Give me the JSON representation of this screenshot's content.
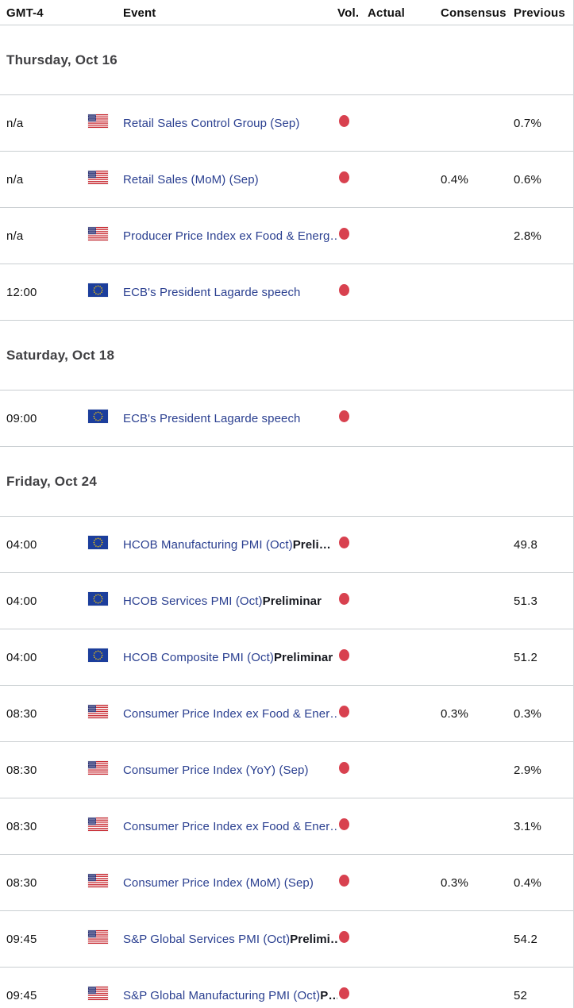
{
  "table": {
    "columns": {
      "time": "GMT-4",
      "event": "Event",
      "vol": "Vol.",
      "actual": "Actual",
      "consensus": "Consensus",
      "previous": "Previous"
    }
  },
  "colors": {
    "event_link_blue": "#2a3f90",
    "volatility_red": "#d8414f",
    "divider_gray": "#c9ced1",
    "day_header_gray": "#404043"
  },
  "sections": [
    {
      "day_label": "Thursday, Oct 16",
      "rows": [
        {
          "time": "n/a",
          "country": "us",
          "event": "Retail Sales Control Group (Sep)",
          "event_bold": "",
          "actual": "",
          "consensus": "",
          "previous": "0.7%"
        },
        {
          "time": "n/a",
          "country": "us",
          "event": "Retail Sales (MoM) (Sep)",
          "event_bold": "",
          "actual": "",
          "consensus": "0.4%",
          "previous": "0.6%"
        },
        {
          "time": "n/a",
          "country": "us",
          "event": "Producer Price Index ex Food & Energ…",
          "event_bold": "",
          "actual": "",
          "consensus": "",
          "previous": "2.8%"
        },
        {
          "time": "12:00",
          "country": "eu",
          "event": "ECB's President Lagarde speech",
          "event_bold": "",
          "actual": "",
          "consensus": "",
          "previous": ""
        }
      ]
    },
    {
      "day_label": "Saturday, Oct 18",
      "rows": [
        {
          "time": "09:00",
          "country": "eu",
          "event": "ECB's President Lagarde speech",
          "event_bold": "",
          "actual": "",
          "consensus": "",
          "previous": ""
        }
      ]
    },
    {
      "day_label": "Friday, Oct 24",
      "rows": [
        {
          "time": "04:00",
          "country": "eu",
          "event": "HCOB Manufacturing PMI (Oct)",
          "event_bold": "Preli…",
          "actual": "",
          "consensus": "",
          "previous": "49.8"
        },
        {
          "time": "04:00",
          "country": "eu",
          "event": "HCOB Services PMI (Oct)",
          "event_bold": "Preliminar",
          "actual": "",
          "consensus": "",
          "previous": "51.3"
        },
        {
          "time": "04:00",
          "country": "eu",
          "event": "HCOB Composite PMI (Oct)",
          "event_bold": "Preliminar",
          "actual": "",
          "consensus": "",
          "previous": "51.2"
        },
        {
          "time": "08:30",
          "country": "us",
          "event": "Consumer Price Index ex Food & Ener…",
          "event_bold": "",
          "actual": "",
          "consensus": "0.3%",
          "previous": "0.3%"
        },
        {
          "time": "08:30",
          "country": "us",
          "event": "Consumer Price Index (YoY) (Sep)",
          "event_bold": "",
          "actual": "",
          "consensus": "",
          "previous": "2.9%"
        },
        {
          "time": "08:30",
          "country": "us",
          "event": "Consumer Price Index ex Food & Ener…",
          "event_bold": "",
          "actual": "",
          "consensus": "",
          "previous": "3.1%"
        },
        {
          "time": "08:30",
          "country": "us",
          "event": "Consumer Price Index (MoM) (Sep)",
          "event_bold": "",
          "actual": "",
          "consensus": "0.3%",
          "previous": "0.4%"
        },
        {
          "time": "09:45",
          "country": "us",
          "event": "S&P Global Services PMI (Oct)",
          "event_bold": "Prelimi…",
          "actual": "",
          "consensus": "",
          "previous": "54.2"
        },
        {
          "time": "09:45",
          "country": "us",
          "event": "S&P Global Manufacturing PMI (Oct)",
          "event_bold": "P…",
          "actual": "",
          "consensus": "",
          "previous": "52"
        }
      ]
    }
  ]
}
